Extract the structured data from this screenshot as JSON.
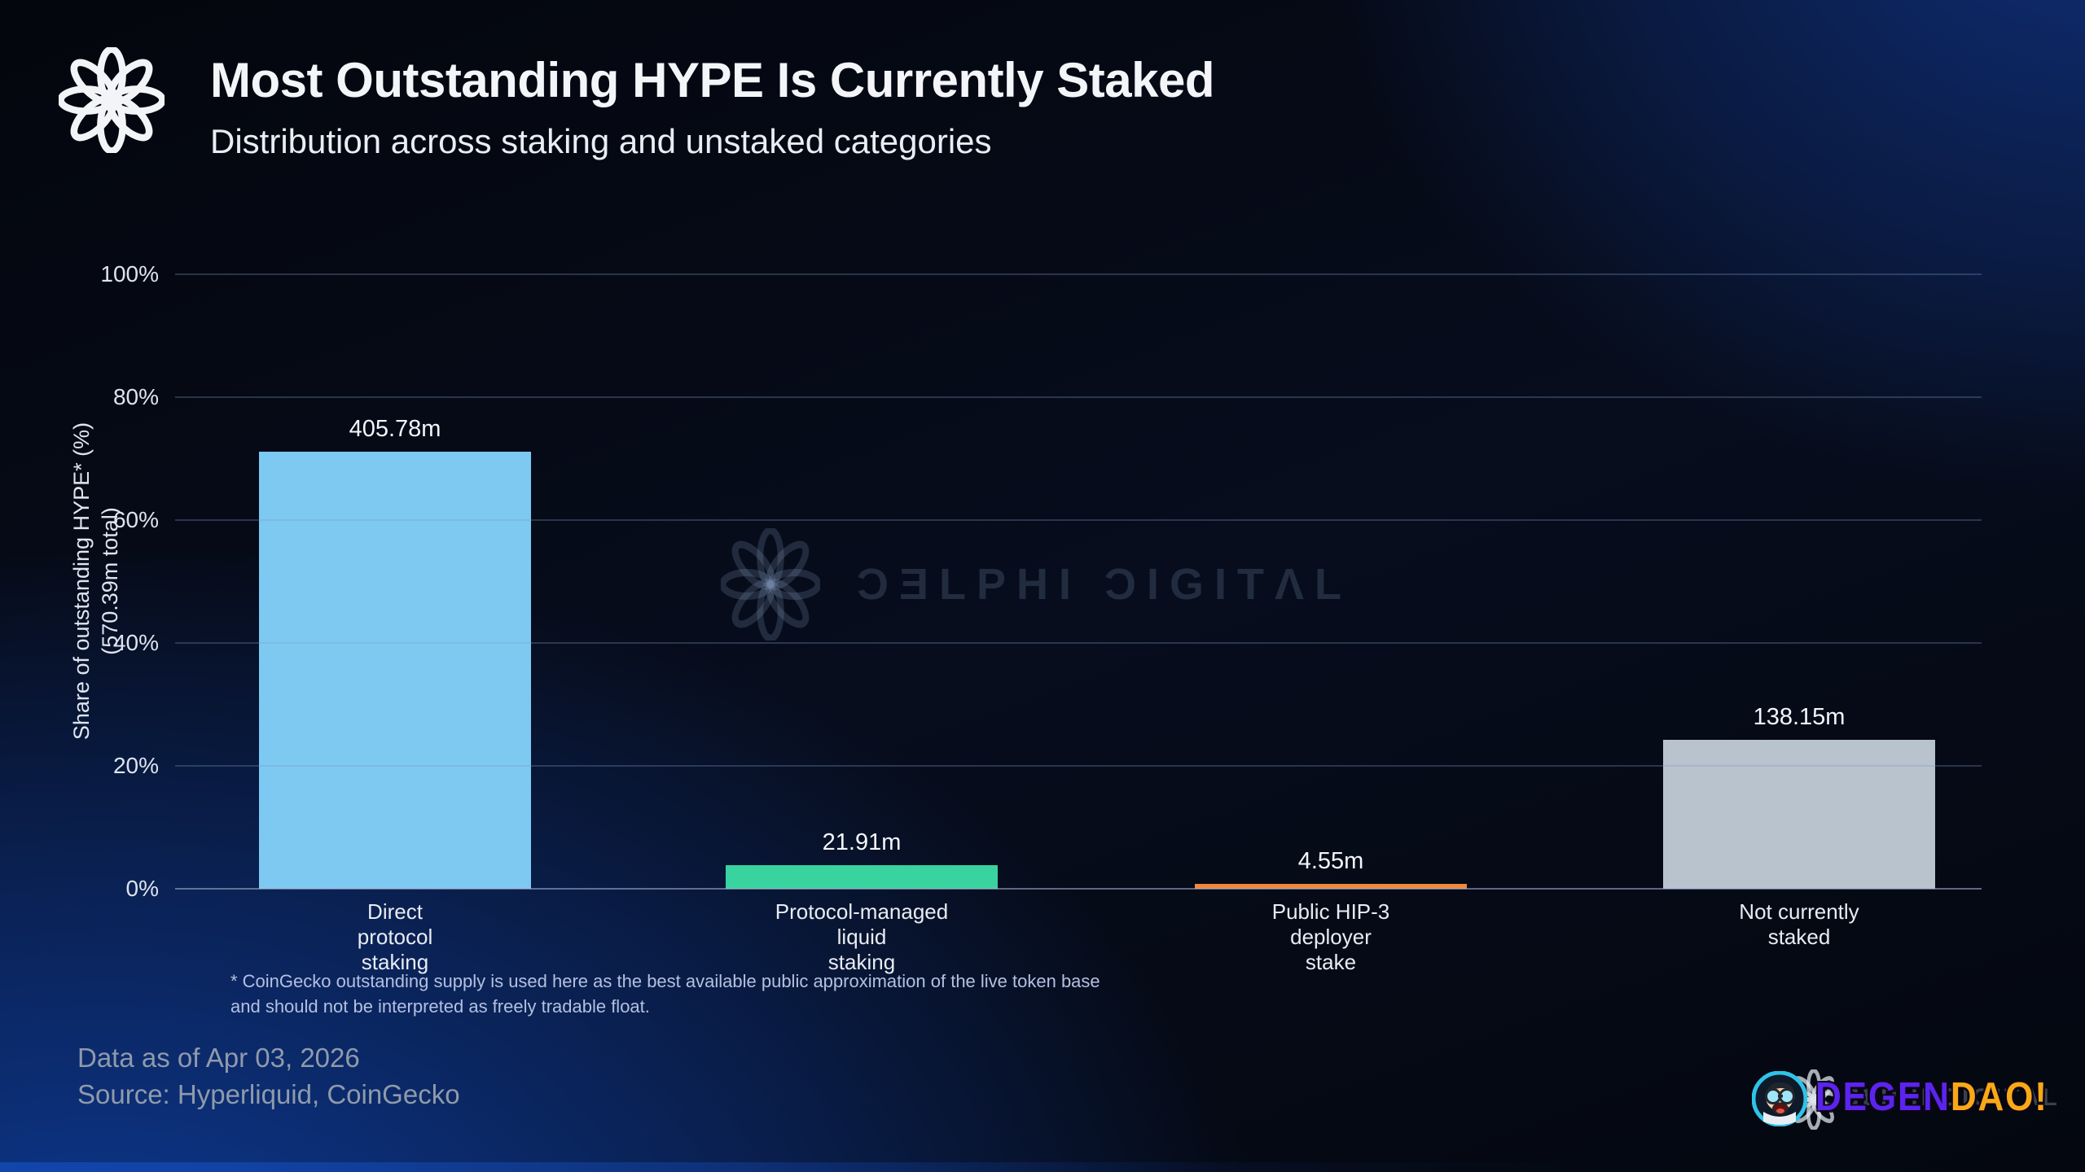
{
  "header": {
    "title": "Most Outstanding HYPE Is Currently Staked",
    "subtitle": "Distribution across staking and unstaked categories"
  },
  "chart_data": {
    "type": "bar",
    "title": "Most Outstanding HYPE Is Currently Staked",
    "subtitle": "Distribution across staking and unstaked categories",
    "ylabel": "Share of outstanding HYPE* (%)",
    "ylabel_secondary": "(570.39m total)",
    "ylabel_display": "Share of outstanding HYPE* (%)\n(570.39m total)",
    "ylim": [
      0,
      100
    ],
    "yticks": [
      "100%",
      "80%",
      "60%",
      "40%",
      "20%",
      "0%"
    ],
    "grid": true,
    "legend": false,
    "total_millions": 570.39,
    "categories": [
      "Direct protocol staking",
      "Protocol-managed liquid staking",
      "Public HIP-3 deployer stake",
      "Not currently staked"
    ],
    "values_millions": [
      405.78,
      21.91,
      4.55,
      138.15
    ],
    "share_of_total_pct": [
      71.1,
      3.8,
      0.8,
      24.2
    ],
    "bars": [
      {
        "category": "Direct protocol staking",
        "category_lines": "Direct\nprotocol\nstaking",
        "value_m": 405.78,
        "value_label": "405.78m",
        "color": "#7dc9f1"
      },
      {
        "category": "Protocol-managed liquid staking",
        "category_lines": "Protocol-managed\nliquid\nstaking",
        "value_m": 21.91,
        "value_label": "21.91m",
        "color": "#38d39e"
      },
      {
        "category": "Public HIP-3 deployer stake",
        "category_lines": "Public HIP-3\ndeployer\nstake",
        "value_m": 4.55,
        "value_label": "4.55m",
        "color": "#f0883a"
      },
      {
        "category": "Not currently staked",
        "category_lines": "Not currently\nstaked",
        "value_m": 138.15,
        "value_label": "138.15m",
        "color": "#b9c3ce"
      }
    ]
  },
  "footnote": "* CoinGecko outstanding supply is used here as the best available public approximation of the live token base\nand should not be interpreted as freely tradable float.",
  "meta": {
    "data_as_of": "Data as of Apr 03, 2026",
    "source": "Source: Hyperliquid, CoinGecko"
  },
  "watermark": {
    "text": "DELPHI DIGITAL",
    "stylized": "ƆƎLPHI ƆIGITΛL"
  },
  "sticker": {
    "degen": "DEGEN",
    "dao": "DAO!",
    "degen_color": "#5b24ee",
    "dao_color": "#f9a916",
    "ghost_text": "DELPHI DIGITAL"
  }
}
